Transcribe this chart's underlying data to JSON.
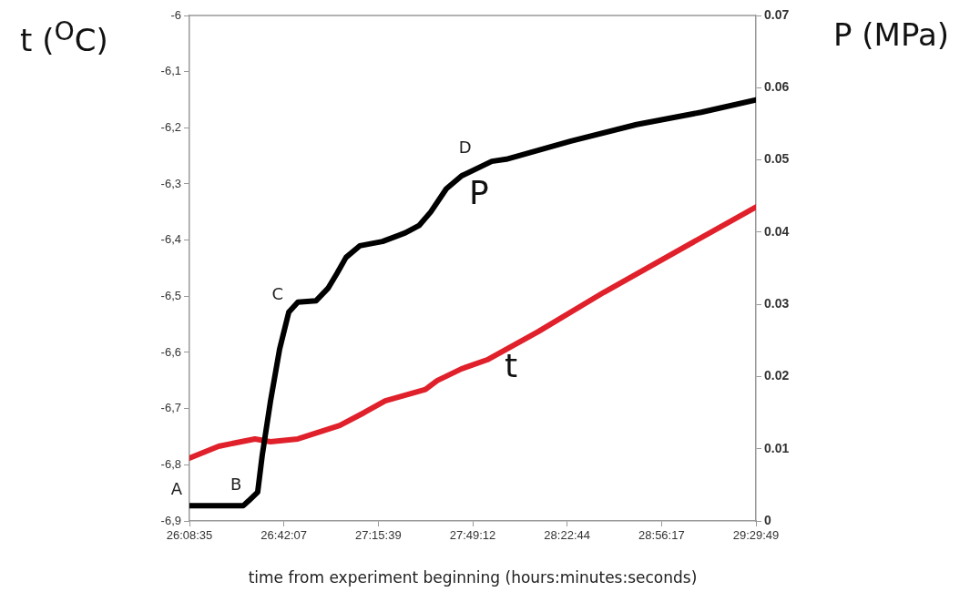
{
  "chart_data": {
    "type": "line",
    "xlabel": "time from experiment beginning (hours:minutes:seconds)",
    "ylabel": "t ($^{O}$C)",
    "y2label": "P (MPa)",
    "xlim": [
      26.143056,
      29.496944
    ],
    "xticks": [
      {
        "value": 26.143056,
        "label": "26:08:35"
      },
      {
        "value": 26.701944,
        "label": "26:42:07"
      },
      {
        "value": 27.260833,
        "label": "27:15:39"
      },
      {
        "value": 27.82,
        "label": "27:49:12"
      },
      {
        "value": 28.378889,
        "label": "28:22:44"
      },
      {
        "value": 28.938056,
        "label": "28:56:17"
      },
      {
        "value": 29.496944,
        "label": "29:29:49"
      }
    ],
    "ylim": [
      -6.9,
      -6
    ],
    "yticks": [
      {
        "value": -6.9,
        "label": "-6,9"
      },
      {
        "value": -6.8,
        "label": "-6,8"
      },
      {
        "value": -6.7,
        "label": "-6,7"
      },
      {
        "value": -6.6,
        "label": "-6,6"
      },
      {
        "value": -6.5,
        "label": "-6,5"
      },
      {
        "value": -6.4,
        "label": "-6,4"
      },
      {
        "value": -6.3,
        "label": "-6,3"
      },
      {
        "value": -6.2,
        "label": "-6,2"
      },
      {
        "value": -6.1,
        "label": "-6,1"
      },
      {
        "value": -6,
        "label": "-6"
      }
    ],
    "y2lim": [
      0,
      0.07
    ],
    "y2ticks": [
      0,
      0.01,
      0.02,
      0.03,
      0.04,
      0.05,
      0.06,
      0.07
    ],
    "grid": false,
    "legend": false,
    "marker": "none",
    "line_style": "solid",
    "series": [
      {
        "name": "P",
        "color": "#000000",
        "axis": "y2",
        "x": [
          26.1431,
          26.461,
          26.494,
          26.547,
          26.574,
          26.623,
          26.677,
          26.731,
          26.785,
          26.893,
          26.963,
          27.017,
          27.07,
          27.151,
          27.286,
          27.421,
          27.502,
          27.572,
          27.664,
          27.755,
          27.933,
          28.019,
          28.402,
          28.79,
          29.173,
          29.4969
        ],
        "values": [
          0.0021,
          0.0021,
          0.0028,
          0.004,
          0.0091,
          0.0166,
          0.0238,
          0.0289,
          0.0303,
          0.0305,
          0.0322,
          0.0343,
          0.0365,
          0.0381,
          0.0387,
          0.0399,
          0.0409,
          0.0428,
          0.046,
          0.0478,
          0.0498,
          0.0501,
          0.0526,
          0.0549,
          0.0566,
          0.0583
        ]
      },
      {
        "name": "t",
        "color": "#e0202a",
        "axis": "y",
        "x": [
          26.1431,
          26.316,
          26.531,
          26.623,
          26.785,
          27.033,
          27.178,
          27.302,
          27.54,
          27.61,
          27.755,
          27.906,
          28.208,
          28.596,
          29.4969
        ],
        "values": [
          -6.788,
          -6.767,
          -6.754,
          -6.759,
          -6.754,
          -6.73,
          -6.707,
          -6.686,
          -6.666,
          -6.65,
          -6.629,
          -6.613,
          -6.563,
          -6.493,
          -6.341
        ]
      }
    ],
    "annotations": [
      {
        "text": "A",
        "x": 26.1431,
        "y": -6.872
      },
      {
        "text": "B",
        "x": 26.494,
        "y": -6.864
      },
      {
        "text": "C",
        "x": 26.74,
        "y": -6.524
      },
      {
        "text": "D",
        "x": 27.85,
        "y": -6.264
      }
    ]
  }
}
